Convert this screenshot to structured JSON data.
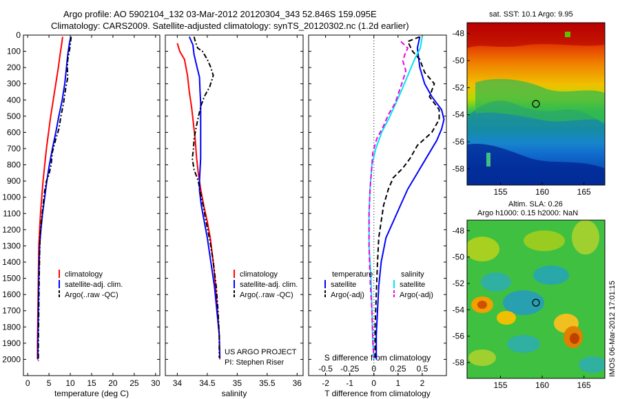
{
  "figure": {
    "title_line1": "Argo profile: AO 5902104_132 03-Mar-2012 20120304_343 52.846S 159.095E",
    "title_line2": "Climatology: CARS2009. Satellite-adjusted climatology: synTS_20120302.nc (1.2d earlier)",
    "credit_line1": "US ARGO PROJECT",
    "credit_line2": "PI: Stephen Riser",
    "watermark": "IMOS 06-Mar-2012 17:01:15",
    "map1_title": "sat. SST: 10.1  Argo: 9.95",
    "map2_title_line1": "Altim. SLA: 0.26",
    "map2_title_line2": "Argo h1000: 0.15  h2000: NaN",
    "colors": {
      "climatology": "#ff0000",
      "satellite": "#0000ff",
      "argo": "#000000",
      "salinity_sat": "#00e5ee",
      "salinity_argo": "#ee00ee"
    }
  },
  "chart_data": [
    {
      "type": "line",
      "title": "",
      "xlabel": "temperature (deg C)",
      "ylabel": "",
      "xlim": [
        -1,
        31
      ],
      "ylim": [
        2100,
        0
      ],
      "xticks": [
        "0",
        "5",
        "10",
        "15",
        "20",
        "25",
        "30"
      ],
      "yticks": [
        "0",
        "100",
        "200",
        "300",
        "400",
        "500",
        "600",
        "700",
        "800",
        "900",
        "1000",
        "1100",
        "1200",
        "1300",
        "1400",
        "1500",
        "1600",
        "1700",
        "1800",
        "1900",
        "2000"
      ],
      "legend": [
        "climatology",
        "satellite-adj. clim.",
        "Argo(..raw -QC)"
      ],
      "series": [
        {
          "name": "climatology",
          "style": "solid",
          "color": "#ff0000",
          "points": [
            [
              8.2,
              10
            ],
            [
              8,
              50
            ],
            [
              7.6,
              120
            ],
            [
              7.2,
              200
            ],
            [
              6.6,
              300
            ],
            [
              6,
              400
            ],
            [
              5.4,
              500
            ],
            [
              4.9,
              600
            ],
            [
              4.4,
              700
            ],
            [
              4,
              800
            ],
            [
              3.6,
              900
            ],
            [
              3.3,
              1000
            ],
            [
              3,
              1100
            ],
            [
              2.8,
              1200
            ],
            [
              2.6,
              1300
            ],
            [
              2.5,
              1500
            ],
            [
              2.4,
              1700
            ],
            [
              2.3,
              1900
            ],
            [
              2.3,
              2000
            ]
          ]
        },
        {
          "name": "satellite-adj. clim.",
          "style": "solid",
          "color": "#0000ff",
          "points": [
            [
              10.1,
              10
            ],
            [
              9.8,
              50
            ],
            [
              9.4,
              120
            ],
            [
              9.1,
              200
            ],
            [
              8.7,
              300
            ],
            [
              8.1,
              400
            ],
            [
              7.3,
              500
            ],
            [
              6.6,
              600
            ],
            [
              5.8,
              700
            ],
            [
              5.1,
              800
            ],
            [
              4.5,
              900
            ],
            [
              4,
              1000
            ],
            [
              3.5,
              1100
            ],
            [
              3.1,
              1200
            ],
            [
              2.8,
              1300
            ],
            [
              2.6,
              1500
            ],
            [
              2.5,
              1700
            ],
            [
              2.4,
              1900
            ],
            [
              2.4,
              2000
            ]
          ]
        },
        {
          "name": "Argo(..raw -QC)",
          "style": "dashed",
          "color": "#000000",
          "points": [
            [
              10.2,
              10
            ],
            [
              9.9,
              80
            ],
            [
              9.4,
              150
            ],
            [
              9.3,
              200
            ],
            [
              9.4,
              260
            ],
            [
              8.9,
              330
            ],
            [
              8.4,
              420
            ],
            [
              7.8,
              500
            ],
            [
              7.3,
              580
            ],
            [
              6.5,
              650
            ],
            [
              5.8,
              720
            ],
            [
              5.5,
              800
            ],
            [
              5,
              860
            ],
            [
              4.4,
              900
            ],
            [
              4,
              960
            ],
            [
              3.6,
              1050
            ],
            [
              3.2,
              1150
            ],
            [
              2.9,
              1250
            ],
            [
              2.8,
              1350
            ],
            [
              2.7,
              1500
            ],
            [
              2.6,
              1700
            ],
            [
              2.5,
              1900
            ],
            [
              2.5,
              2010
            ]
          ]
        }
      ]
    },
    {
      "type": "line",
      "title": "",
      "xlabel": "salinity",
      "ylabel": "",
      "xlim": [
        33.8,
        36.1
      ],
      "ylim": [
        2100,
        0
      ],
      "xticks": [
        "34",
        "34.5",
        "35",
        "35.5",
        "36"
      ],
      "legend": [
        "climatology",
        "satellite-adj. clim.",
        "Argo(..raw -QC)"
      ],
      "series": [
        {
          "name": "climatology",
          "style": "solid",
          "color": "#ff0000",
          "points": [
            [
              34.0,
              50
            ],
            [
              34.04,
              100
            ],
            [
              34.12,
              150
            ],
            [
              34.17,
              250
            ],
            [
              34.2,
              350
            ],
            [
              34.24,
              450
            ],
            [
              34.27,
              550
            ],
            [
              34.3,
              650
            ],
            [
              34.32,
              750
            ],
            [
              34.35,
              850
            ],
            [
              34.39,
              950
            ],
            [
              34.44,
              1050
            ],
            [
              34.5,
              1150
            ],
            [
              34.55,
              1250
            ],
            [
              34.6,
              1400
            ],
            [
              34.64,
              1550
            ],
            [
              34.67,
              1700
            ],
            [
              34.7,
              1850
            ],
            [
              34.71,
              2000
            ]
          ]
        },
        {
          "name": "satellite-adj. clim.",
          "style": "solid",
          "color": "#0000ff",
          "points": [
            [
              34.2,
              10
            ],
            [
              34.26,
              60
            ],
            [
              34.28,
              120
            ],
            [
              34.33,
              200
            ],
            [
              34.37,
              260
            ],
            [
              34.38,
              350
            ],
            [
              34.39,
              420
            ],
            [
              34.39,
              500
            ],
            [
              34.39,
              600
            ],
            [
              34.39,
              680
            ],
            [
              34.39,
              760
            ],
            [
              34.38,
              830
            ],
            [
              34.37,
              900
            ],
            [
              34.37,
              960
            ],
            [
              34.4,
              1050
            ],
            [
              34.45,
              1150
            ],
            [
              34.5,
              1250
            ],
            [
              34.56,
              1400
            ],
            [
              34.62,
              1550
            ],
            [
              34.66,
              1700
            ],
            [
              34.7,
              1850
            ],
            [
              34.71,
              1990
            ]
          ]
        },
        {
          "name": "Argo(..raw -QC)",
          "style": "dashed",
          "color": "#000000",
          "points": [
            [
              34.28,
              10
            ],
            [
              34.3,
              40
            ],
            [
              34.34,
              80
            ],
            [
              34.42,
              100
            ],
            [
              34.5,
              150
            ],
            [
              34.56,
              200
            ],
            [
              34.6,
              250
            ],
            [
              34.54,
              320
            ],
            [
              34.45,
              380
            ],
            [
              34.4,
              430
            ],
            [
              34.36,
              490
            ],
            [
              34.32,
              560
            ],
            [
              34.28,
              640
            ],
            [
              34.27,
              700
            ],
            [
              34.25,
              760
            ],
            [
              34.28,
              830
            ],
            [
              34.35,
              900
            ],
            [
              34.38,
              960
            ],
            [
              34.43,
              1050
            ],
            [
              34.48,
              1150
            ],
            [
              34.55,
              1280
            ],
            [
              34.6,
              1400
            ],
            [
              34.65,
              1550
            ],
            [
              34.68,
              1700
            ],
            [
              34.7,
              1850
            ],
            [
              34.7,
              1990
            ]
          ]
        }
      ]
    },
    {
      "type": "line",
      "title": "",
      "xlabel": "T difference from climatology",
      "x2label": "S difference from climatology",
      "ylabel": "",
      "xlim": [
        -2.7,
        3.0
      ],
      "x2lim": [
        -0.675,
        0.75
      ],
      "ylim": [
        2100,
        0
      ],
      "xticks": [
        "-2",
        "-1",
        "0",
        "1",
        "2"
      ],
      "x2ticks": [
        "-0.5",
        "-0.25",
        "0",
        "0.25",
        "0.5"
      ],
      "legend_groups": [
        {
          "heading": "temperature",
          "entries": [
            "satellite",
            "Argo(-adj)"
          ]
        },
        {
          "heading": "salinity",
          "entries": [
            "satellite",
            "Argo(-adj)"
          ]
        }
      ],
      "series": [
        {
          "name": "satellite",
          "group": "temperature",
          "style": "solid",
          "color": "#0000ff",
          "points": [
            [
              1.9,
              10
            ],
            [
              1.8,
              80
            ],
            [
              1.9,
              200
            ],
            [
              2.1,
              300
            ],
            [
              2.4,
              380
            ],
            [
              2.8,
              460
            ],
            [
              2.9,
              520
            ],
            [
              2.8,
              580
            ],
            [
              2.6,
              650
            ],
            [
              2.2,
              750
            ],
            [
              1.8,
              850
            ],
            [
              1.4,
              950
            ],
            [
              1.1,
              1050
            ],
            [
              0.8,
              1150
            ],
            [
              0.5,
              1250
            ],
            [
              0.3,
              1400
            ],
            [
              0.2,
              1550
            ],
            [
              0.15,
              1700
            ],
            [
              0.1,
              1850
            ],
            [
              0.1,
              2000
            ]
          ]
        },
        {
          "name": "Argo(-adj)",
          "group": "temperature",
          "style": "dashed",
          "color": "#000000",
          "points": [
            [
              1.9,
              10
            ],
            [
              1.4,
              40
            ],
            [
              1.6,
              100
            ],
            [
              1.9,
              150
            ],
            [
              2.1,
              230
            ],
            [
              2.5,
              300
            ],
            [
              2.3,
              380
            ],
            [
              2.7,
              460
            ],
            [
              2.7,
              520
            ],
            [
              2.4,
              600
            ],
            [
              1.8,
              680
            ],
            [
              1.5,
              760
            ],
            [
              1.2,
              820
            ],
            [
              0.8,
              880
            ],
            [
              0.6,
              950
            ],
            [
              0.4,
              1050
            ],
            [
              0.3,
              1150
            ],
            [
              0.2,
              1250
            ],
            [
              0.15,
              1400
            ],
            [
              0.1,
              1600
            ],
            [
              0.05,
              1800
            ],
            [
              0.05,
              1990
            ]
          ]
        },
        {
          "name": "satellite",
          "group": "salinity",
          "style": "solid",
          "color": "#00e5ee",
          "points": [
            [
              0.5,
              10
            ],
            [
              0.48,
              80
            ],
            [
              0.42,
              150
            ],
            [
              0.35,
              250
            ],
            [
              0.28,
              350
            ],
            [
              0.22,
              430
            ],
            [
              0.15,
              520
            ],
            [
              0.08,
              600
            ],
            [
              0.02,
              700
            ],
            [
              -0.02,
              800
            ],
            [
              -0.04,
              950
            ],
            [
              -0.05,
              1100
            ],
            [
              -0.05,
              1300
            ],
            [
              -0.03,
              1500
            ],
            [
              -0.02,
              1700
            ],
            [
              -0.01,
              1900
            ],
            [
              0.0,
              2000
            ]
          ]
        },
        {
          "name": "Argo(-adj)",
          "group": "salinity",
          "style": "dashed",
          "color": "#ee00ee",
          "points": [
            [
              0.28,
              40
            ],
            [
              0.35,
              80
            ],
            [
              0.32,
              120
            ],
            [
              0.3,
              160
            ],
            [
              0.33,
              220
            ],
            [
              0.3,
              280
            ],
            [
              0.26,
              350
            ],
            [
              0.22,
              420
            ],
            [
              0.15,
              490
            ],
            [
              0.1,
              560
            ],
            [
              0.03,
              640
            ],
            [
              -0.01,
              720
            ],
            [
              -0.02,
              800
            ],
            [
              -0.03,
              880
            ],
            [
              -0.04,
              960
            ],
            [
              -0.05,
              1100
            ],
            [
              -0.05,
              1300
            ],
            [
              -0.04,
              1500
            ],
            [
              -0.02,
              1700
            ],
            [
              -0.01,
              1900
            ],
            [
              0.0,
              1990
            ]
          ]
        }
      ]
    },
    {
      "type": "heatmap",
      "title": "sat. SST: 10.1  Argo: 9.95",
      "xlim": [
        151,
        167.5
      ],
      "ylim": [
        -59.2,
        -47.2
      ],
      "xticks": [
        "155",
        "160",
        "165"
      ],
      "yticks": [
        "-48",
        "-50",
        "-52",
        "-54",
        "-56",
        "-58"
      ],
      "marker": {
        "lon": 159.095,
        "lat": -52.846
      }
    },
    {
      "type": "heatmap",
      "title": "Altim. SLA: 0.26",
      "subtitle": "Argo h1000: 0.15  h2000: NaN",
      "xlim": [
        151,
        167.5
      ],
      "ylim": [
        -59.2,
        -47.2
      ],
      "xticks": [
        "155",
        "160",
        "165"
      ],
      "yticks": [
        "-48",
        "-50",
        "-52",
        "-54",
        "-56",
        "-58"
      ],
      "marker": {
        "lon": 159.095,
        "lat": -52.846
      }
    }
  ]
}
